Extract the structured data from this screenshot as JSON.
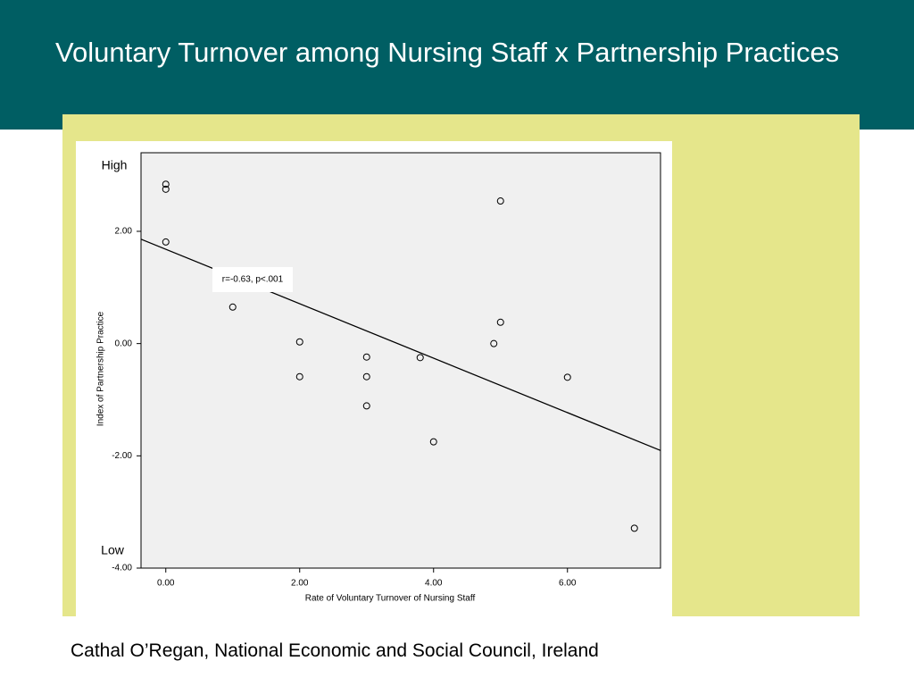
{
  "chart_data": {
    "type": "scatter",
    "title": "Voluntary Turnover among Nursing Staff x Partnership Practices",
    "x_label": "Rate of Voluntary Turnover of Nursing Staff",
    "y_label": "Index of Partnership Practice",
    "high_label": "High",
    "low_label": "Low",
    "annotation": "r=-0.63, p<.001",
    "x": [
      0,
      0,
      0,
      1,
      2,
      2,
      3,
      3,
      3,
      3.8,
      4,
      4.9,
      5,
      5,
      6,
      7
    ],
    "values": [
      2.84,
      2.75,
      1.81,
      0.65,
      0.03,
      -0.59,
      -0.24,
      -0.59,
      -1.11,
      -0.25,
      -1.75,
      0,
      0.38,
      2.54,
      -0.6,
      -3.29
    ],
    "fit_line": {
      "intercept": 1.68,
      "slope": -0.485
    },
    "xlim": [
      -0.37,
      7.39
    ],
    "ylim": [
      -4,
      3.4
    ],
    "xticks": [
      {
        "value": 0,
        "label": "0.00"
      },
      {
        "value": 2,
        "label": "2.00"
      },
      {
        "value": 4,
        "label": "4.00"
      },
      {
        "value": 6,
        "label": "6.00"
      }
    ],
    "yticks": [
      {
        "value": -4,
        "label": "-4.00"
      },
      {
        "value": -2,
        "label": "-2.00"
      },
      {
        "value": 0,
        "label": "0.00"
      },
      {
        "value": 2,
        "label": "2.00"
      }
    ],
    "color": "#000000"
  },
  "footer": "Cathal O’Regan, National Economic and Social Council, Ireland"
}
